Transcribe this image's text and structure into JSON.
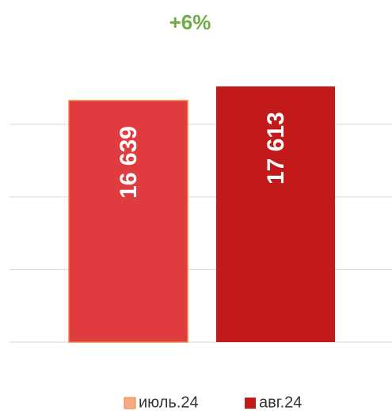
{
  "chart_data": {
    "type": "bar",
    "title": "+6%",
    "categories": [
      null
    ],
    "series": [
      {
        "name": "июль.24",
        "color": "#e03c40",
        "edgecolor": "#f0843e",
        "values": [
          16639
        ],
        "value_labels": [
          "16 639"
        ]
      },
      {
        "name": "авг.24",
        "color": "#c2191b",
        "values": [
          17613
        ],
        "value_labels": [
          "17 613"
        ]
      }
    ],
    "ylim": [
      0,
      20000
    ],
    "yticks": [
      0,
      5000,
      10000,
      15000
    ],
    "grid": true
  }
}
